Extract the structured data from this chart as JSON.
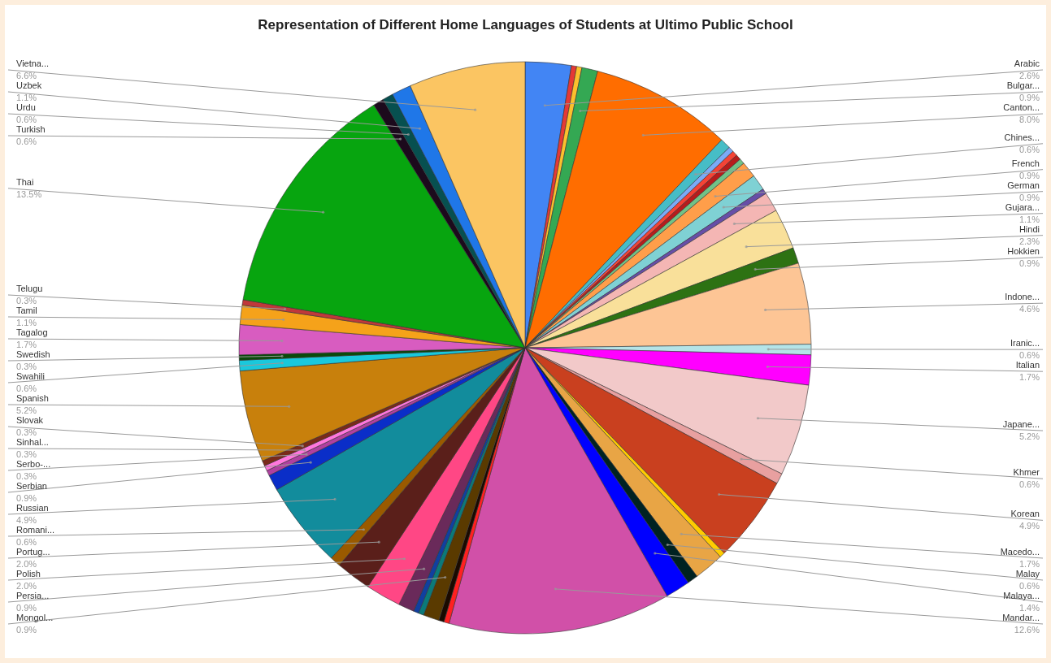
{
  "chart_data": {
    "type": "pie",
    "title": "Representation of Different Home Languages of Students at Ultimo Public School",
    "categories": [
      "Arabic",
      null,
      null,
      "Bulgar...",
      "Canton...",
      "Chines...",
      null,
      null,
      null,
      null,
      "French",
      "German",
      null,
      "Gujara...",
      "Hindi",
      "Hokkien",
      "Indone...",
      "Iranic...",
      "Italian",
      "Japane...",
      "Khmer",
      "Korean",
      null,
      "Macedo...",
      "Malay",
      "Malaya...",
      "Mandar...",
      null,
      null,
      "Mongol...",
      null,
      null,
      "Persia...",
      "Polish",
      "Portug...",
      "Romani...",
      "Russian",
      "Serbian",
      "Serbo-...",
      "Sinhal...",
      "Slovak",
      "Spanish",
      "Swahili",
      "Swedish",
      "Tagalog",
      "Tamil",
      "Telugu",
      "Thai",
      "Turkish",
      "Urdu",
      "Uzbek",
      "Vietna..."
    ],
    "values": [
      2.6,
      0.3,
      0.3,
      0.9,
      8.0,
      0.6,
      0.3,
      0.3,
      0.3,
      0.3,
      0.9,
      0.9,
      0.3,
      1.1,
      2.3,
      0.9,
      4.6,
      0.6,
      1.7,
      5.2,
      0.6,
      4.9,
      0.3,
      1.7,
      0.6,
      1.4,
      12.6,
      0.3,
      0.3,
      0.9,
      0.3,
      0.3,
      0.9,
      2.0,
      2.0,
      0.6,
      4.9,
      0.9,
      0.3,
      0.3,
      0.3,
      5.2,
      0.6,
      0.3,
      1.7,
      1.1,
      0.3,
      13.5,
      0.6,
      0.6,
      1.1,
      6.6
    ],
    "value_labels": [
      "2.6%",
      null,
      null,
      "0.9%",
      "8.0%",
      "0.6%",
      null,
      null,
      null,
      null,
      "0.9%",
      "0.9%",
      null,
      "1.1%",
      "2.3%",
      "0.9%",
      "4.6%",
      "0.6%",
      "1.7%",
      "5.2%",
      "0.6%",
      "4.9%",
      null,
      "1.7%",
      "0.6%",
      "1.4%",
      "12.6%",
      null,
      null,
      "0.9%",
      null,
      null,
      "0.9%",
      "2.0%",
      "2.0%",
      "0.6%",
      "4.9%",
      "0.9%",
      "0.3%",
      "0.3%",
      "0.3%",
      "5.2%",
      "0.6%",
      "0.3%",
      "1.7%",
      "1.1%",
      "0.3%",
      "13.5%",
      "0.6%",
      "0.6%",
      "1.1%",
      "6.6%"
    ],
    "colors": [
      "#4285f4",
      "#e53935",
      "#fbc02d",
      "#34a853",
      "#ff6d00",
      "#46bdc6",
      "#7baaf7",
      "#f44336",
      "#b71c1c",
      "#71c287",
      "#ff9e4a",
      "#7fd1d4",
      "#674ea7",
      "#f4b6b4",
      "#f9e09a",
      "#2d7213",
      "#fdc595",
      "#b4e4e8",
      "#ff00ff",
      "#f2c9c9",
      "#e8a0a0",
      "#c9401f",
      "#ffcc00",
      "#e8a545",
      "#002222",
      "#0000ff",
      "#d150a8",
      "#ff2020",
      "#1a0a00",
      "#5a3a00",
      "#0b7a7a",
      "#1040a0",
      "#6a2a5a",
      "#ff4785",
      "#5a1f1a",
      "#9a5a00",
      "#128c9c",
      "#0a2ec8",
      "#b040a0",
      "#ff77dd",
      "#7a2a1a",
      "#c8800c",
      "#1ac8dc",
      "#0a4a0a",
      "#d85cc0",
      "#f5a21a",
      "#c0393a",
      "#07a50f",
      "#1c0a1c",
      "#075050",
      "#1f77e8",
      "#fbc562"
    ],
    "legend": false
  }
}
